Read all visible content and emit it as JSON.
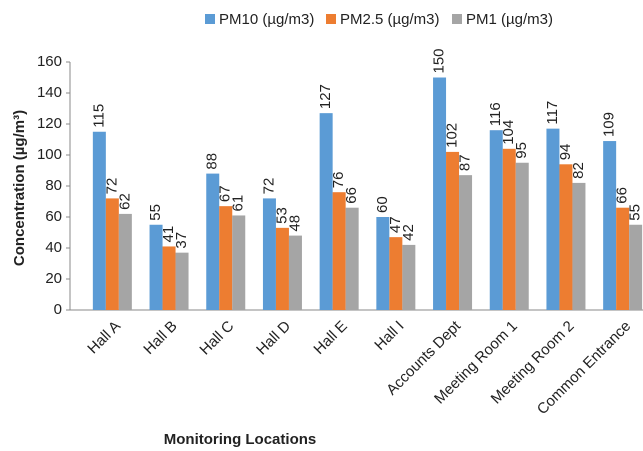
{
  "chart_data": {
    "type": "bar",
    "x_label": "Monitoring Locations",
    "y_label": "Concentration (µg/m³)",
    "categories": [
      "Hall A",
      "Hall B",
      "Hall C",
      "Hall D",
      "Hall E",
      "Hall I",
      "Accounts Dept",
      "Meeting Room 1",
      "Meeting Room 2",
      "Common Entrance"
    ],
    "series": [
      {
        "name": "PM10 (µg/m3)",
        "color": "#5b9bd5",
        "values": [
          115,
          55,
          88,
          72,
          127,
          60,
          150,
          116,
          117,
          109
        ]
      },
      {
        "name": "PM2.5 (µg/m3)",
        "color": "#ed7d31",
        "values": [
          72,
          41,
          67,
          53,
          76,
          47,
          102,
          104,
          94,
          66
        ]
      },
      {
        "name": "PM1 (µg/m3)",
        "color": "#a5a5a5",
        "values": [
          62,
          37,
          61,
          48,
          66,
          42,
          87,
          95,
          82,
          55
        ]
      }
    ],
    "ylim": [
      0,
      160
    ],
    "yticks": [
      0,
      20,
      40,
      60,
      80,
      100,
      120,
      140,
      160
    ],
    "grid": false,
    "legend": "top"
  }
}
